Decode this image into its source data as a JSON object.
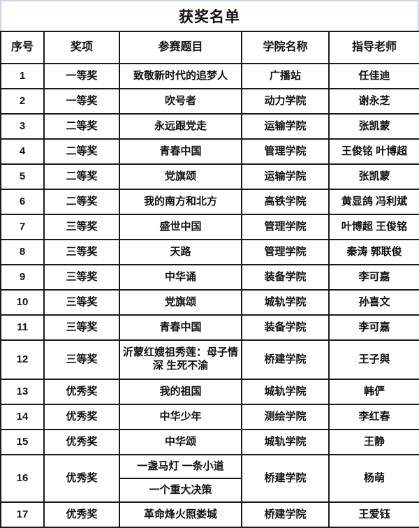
{
  "title": "获奖名单",
  "colors": {
    "grid": "#1a1a1a",
    "title_border": "#cbd6e8",
    "text": "#111111",
    "background": "#ffffff"
  },
  "table": {
    "headers": [
      "序号",
      "奖项",
      "参赛题目",
      "学院名称",
      "指导老师"
    ],
    "rows": [
      {
        "no": "1",
        "award": "一等奖",
        "title": "致敬新时代的追梦人",
        "college": "广播站",
        "teacher": "任佳迪"
      },
      {
        "no": "2",
        "award": "一等奖",
        "title": "吹号者",
        "college": "动力学院",
        "teacher": "谢永芝"
      },
      {
        "no": "3",
        "award": "二等奖",
        "title": "永远跟党走",
        "college": "运输学院",
        "teacher": "张凯蒙"
      },
      {
        "no": "4",
        "award": "二等奖",
        "title": "青春中国",
        "college": "管理学院",
        "teacher": "王俊铭 叶博超"
      },
      {
        "no": "5",
        "award": "二等奖",
        "title": "党旗颂",
        "college": "运输学院",
        "teacher": "张凯蒙"
      },
      {
        "no": "6",
        "award": "二等奖",
        "title": "我的南方和北方",
        "college": "高铁学院",
        "teacher": "黄显鸽 冯利斌"
      },
      {
        "no": "7",
        "award": "三等奖",
        "title": "盛世中国",
        "college": "管理学院",
        "teacher": "叶博超 王俊铭"
      },
      {
        "no": "8",
        "award": "三等奖",
        "title": "天路",
        "college": "管理学院",
        "teacher": "秦涛 郭联俊"
      },
      {
        "no": "9",
        "award": "三等奖",
        "title": "中华诵",
        "college": "装备学院",
        "teacher": "李可嘉"
      },
      {
        "no": "10",
        "award": "三等奖",
        "title": "党旗颂",
        "college": "城轨学院",
        "teacher": "孙喜文"
      },
      {
        "no": "11",
        "award": "三等奖",
        "title": "青春中国",
        "college": "装备学院",
        "teacher": "李可嘉"
      },
      {
        "no": "12",
        "award": "三等奖",
        "title": "沂蒙红嫂祖秀莲：母子情深 生死不渝",
        "college": "桥建学院",
        "teacher": "王子與",
        "tall": true
      },
      {
        "no": "13",
        "award": "优秀奖",
        "title": "我的祖国",
        "college": "城轨学院",
        "teacher": "韩俨"
      },
      {
        "no": "14",
        "award": "优秀奖",
        "title": "中华少年",
        "college": "测绘学院",
        "teacher": "李红春"
      },
      {
        "no": "15",
        "award": "优秀奖",
        "title": "中华颂",
        "college": "城轨学院",
        "teacher": "王静"
      },
      {
        "no": "16",
        "award": "优秀奖",
        "titles": [
          "一盏马灯 一条小道",
          "一个重大决策"
        ],
        "college": "桥建学院",
        "teacher": "杨萌",
        "split": true
      },
      {
        "no": "17",
        "award": "优秀奖",
        "title": "革命烽火照娄城",
        "college": "桥建学院",
        "teacher": "王爱钰"
      }
    ]
  }
}
